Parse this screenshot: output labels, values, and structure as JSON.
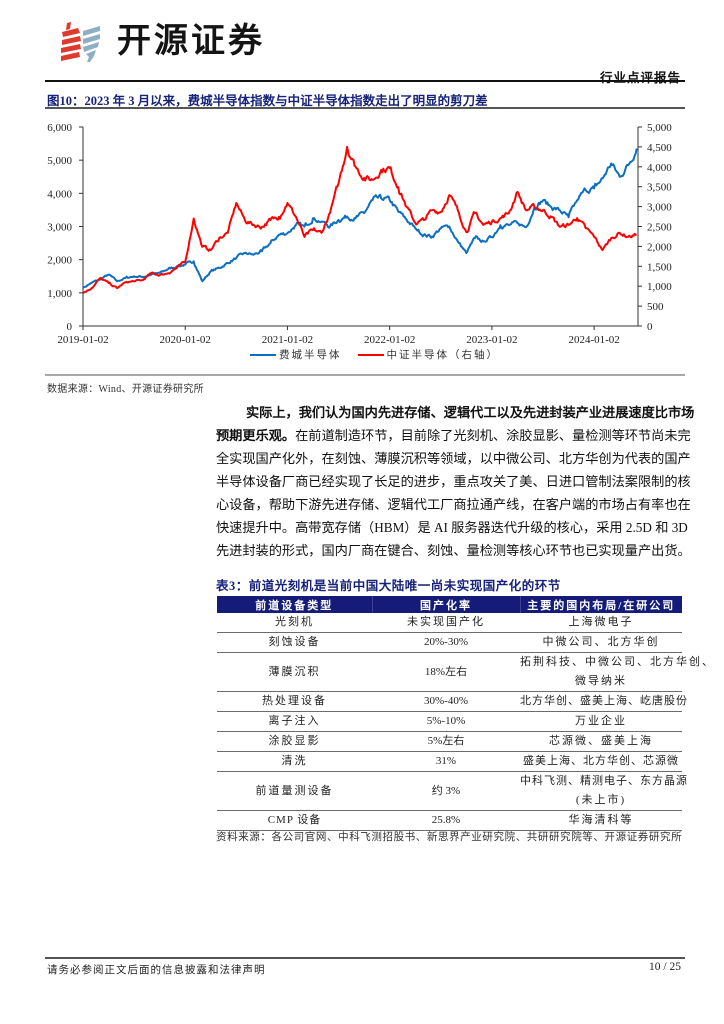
{
  "header": {
    "logo_text": "开源证券",
    "report_type": "行业点评报告"
  },
  "figure": {
    "title": "图10：2023 年 3 月以来，费城半导体指数与中证半导体指数走出了明显的剪刀差",
    "source": "数据来源：Wind、开源证券研究所"
  },
  "chart_data": {
    "type": "line",
    "title": "图10：2023 年 3 月以来，费城半导体指数与中证半导体指数走出了明显的剪刀差",
    "xlabel": "",
    "ylabel": "",
    "grid": false,
    "legend_position": "bottom",
    "x": [
      "2019-01",
      "2019-02",
      "2019-03",
      "2019-04",
      "2019-05",
      "2019-06",
      "2019-07",
      "2019-08",
      "2019-09",
      "2019-10",
      "2019-11",
      "2019-12",
      "2020-01",
      "2020-02",
      "2020-03",
      "2020-04",
      "2020-05",
      "2020-06",
      "2020-07",
      "2020-08",
      "2020-09",
      "2020-10",
      "2020-11",
      "2020-12",
      "2021-01",
      "2021-02",
      "2021-03",
      "2021-04",
      "2021-05",
      "2021-06",
      "2021-07",
      "2021-08",
      "2021-09",
      "2021-10",
      "2021-11",
      "2021-12",
      "2022-01",
      "2022-02",
      "2022-03",
      "2022-04",
      "2022-05",
      "2022-06",
      "2022-07",
      "2022-08",
      "2022-09",
      "2022-10",
      "2022-11",
      "2022-12",
      "2023-01",
      "2023-02",
      "2023-03",
      "2023-04",
      "2023-05",
      "2023-06",
      "2023-07",
      "2023-08",
      "2023-09",
      "2023-10",
      "2023-11",
      "2023-12",
      "2024-01",
      "2024-02",
      "2024-03",
      "2024-04",
      "2024-05",
      "2024-06"
    ],
    "x_ticks": [
      {
        "label": "2019-01-02",
        "index": 0
      },
      {
        "label": "2020-01-02",
        "index": 12
      },
      {
        "label": "2021-01-02",
        "index": 24
      },
      {
        "label": "2022-01-02",
        "index": 36
      },
      {
        "label": "2023-01-02",
        "index": 48
      },
      {
        "label": "2024-01-02",
        "index": 60
      }
    ],
    "y_left": {
      "ylim": [
        0,
        6000
      ],
      "ticks": [
        0,
        1000,
        2000,
        3000,
        4000,
        5000,
        6000
      ],
      "tick_labels": [
        "0",
        "1,000",
        "2,000",
        "3,000",
        "4,000",
        "5,000",
        "6,000"
      ]
    },
    "y_right": {
      "ylim": [
        0,
        5000
      ],
      "ticks": [
        0,
        500,
        1000,
        1500,
        2000,
        2500,
        3000,
        3500,
        4000,
        4500,
        5000
      ],
      "tick_labels": [
        "0",
        "500",
        "1,000",
        "1,500",
        "2,000",
        "2,500",
        "3,000",
        "3,500",
        "4,000",
        "4,500",
        "5,000"
      ]
    },
    "series": [
      {
        "name": "费城半导体",
        "axis": "left",
        "color": "#0b6fc2",
        "values": [
          1150,
          1300,
          1400,
          1550,
          1350,
          1450,
          1500,
          1480,
          1550,
          1600,
          1720,
          1800,
          1850,
          1950,
          1350,
          1650,
          1750,
          1900,
          2050,
          2200,
          2150,
          2250,
          2500,
          2750,
          2800,
          3050,
          3000,
          3250,
          3150,
          3000,
          3200,
          3300,
          3250,
          3400,
          3800,
          3850,
          3800,
          3450,
          3200,
          2950,
          2750,
          2700,
          2950,
          3000,
          2550,
          2200,
          2650,
          2550,
          2680,
          3040,
          3040,
          3100,
          2980,
          3580,
          3790,
          3580,
          3480,
          3280,
          3790,
          4100,
          4150,
          4450,
          4900,
          4500,
          4850,
          5350
        ]
      },
      {
        "name": "中证半导体（右轴）",
        "axis": "right",
        "color": "#ff0000",
        "values": [
          830,
          950,
          1200,
          1080,
          950,
          1100,
          1120,
          1150,
          1330,
          1280,
          1330,
          1460,
          1610,
          2700,
          1990,
          1910,
          2210,
          2340,
          3090,
          2660,
          2540,
          2490,
          2660,
          2740,
          3090,
          2740,
          2240,
          2410,
          2340,
          2840,
          3590,
          4500,
          4000,
          3720,
          3670,
          3920,
          3970,
          3490,
          2990,
          2590,
          2660,
          2910,
          2870,
          3290,
          2910,
          2360,
          2840,
          2540,
          2620,
          2710,
          2840,
          3370,
          2910,
          2990,
          2910,
          2740,
          2490,
          2540,
          2710,
          2460,
          2240,
          1910,
          2210,
          2340,
          2240,
          2290
        ]
      }
    ]
  },
  "body": {
    "paragraph_lines": [
      {
        "bold": "实际上，我们认为国内先进存储、逻辑代工以及先进封装产业进展速度比市场",
        "text": ""
      },
      {
        "bold": "预期更乐观。",
        "text": "在前道制造环节，目前除了光刻机、涂胶显影、量检测等环节尚未完"
      },
      {
        "bold": "",
        "text": "全实现国产化外，在刻蚀、薄膜沉积等领域，以中微公司、北方华创为代表的国产"
      },
      {
        "bold": "",
        "text": "半导体设备厂商已经实现了长足的进步，重点攻关了美、日进口管制法案限制的核"
      },
      {
        "bold": "",
        "text": "心设备，帮助下游先进存储、逻辑代工厂商拉通产线，在客户端的市场占有率也在"
      },
      {
        "bold": "",
        "text": "快速提升中。高带宽存储（HBM）是 AI 服务器迭代升级的核心，采用 2.5D 和 3D"
      },
      {
        "bold": "",
        "text": "先进封装的形式，国内厂商在键合、刻蚀、量检测等核心环节也已实现量产出货。"
      }
    ]
  },
  "table": {
    "title": "表3：前道光刻机是当前中国大陆唯一尚未实现国产化的环节",
    "headers": [
      "前道设备类型",
      "国产化率",
      "主要的国内布局/在研公司"
    ],
    "rows": [
      {
        "type": "光刻机",
        "rate": "未实现国产化",
        "companies": [
          "上海微电子"
        ]
      },
      {
        "type": "刻蚀设备",
        "rate": "20%-30%",
        "companies": [
          "中微公司、北方华创"
        ]
      },
      {
        "type": "薄膜沉积",
        "rate": "18%左右",
        "companies": [
          "拓荆科技、中微公司、北方华创、",
          "微导纳米"
        ]
      },
      {
        "type": "热处理设备",
        "rate": "30%-40%",
        "companies": [
          "北方华创、盛美上海、屹唐股份"
        ]
      },
      {
        "type": "离子注入",
        "rate": "5%-10%",
        "companies": [
          "万业企业"
        ]
      },
      {
        "type": "涂胶显影",
        "rate": "5%左右",
        "companies": [
          "芯源微、盛美上海"
        ]
      },
      {
        "type": "清洗",
        "rate": "31%",
        "companies": [
          "盛美上海、北方华创、芯源微"
        ]
      },
      {
        "type": "前道量测设备",
        "rate": "约 3%",
        "companies": [
          "中科飞测、精测电子、东方晶源",
          "(未上市)"
        ]
      },
      {
        "type": "CMP 设备",
        "rate": "25.8%",
        "companies": [
          "华海清科等"
        ]
      }
    ],
    "source": "资料来源：各公司官网、中科飞测招股书、新思界产业研究院、共研研究院等、开源证券研究所"
  },
  "footer": {
    "disclaimer": "请务必参阅正文后面的信息披露和法律声明",
    "page": "10 / 25"
  },
  "colors": {
    "brand_red": "#e03a2f",
    "brand_blue": "#8eaec4",
    "title_navy": "#17237a",
    "table_header_bg": "#141b78"
  }
}
